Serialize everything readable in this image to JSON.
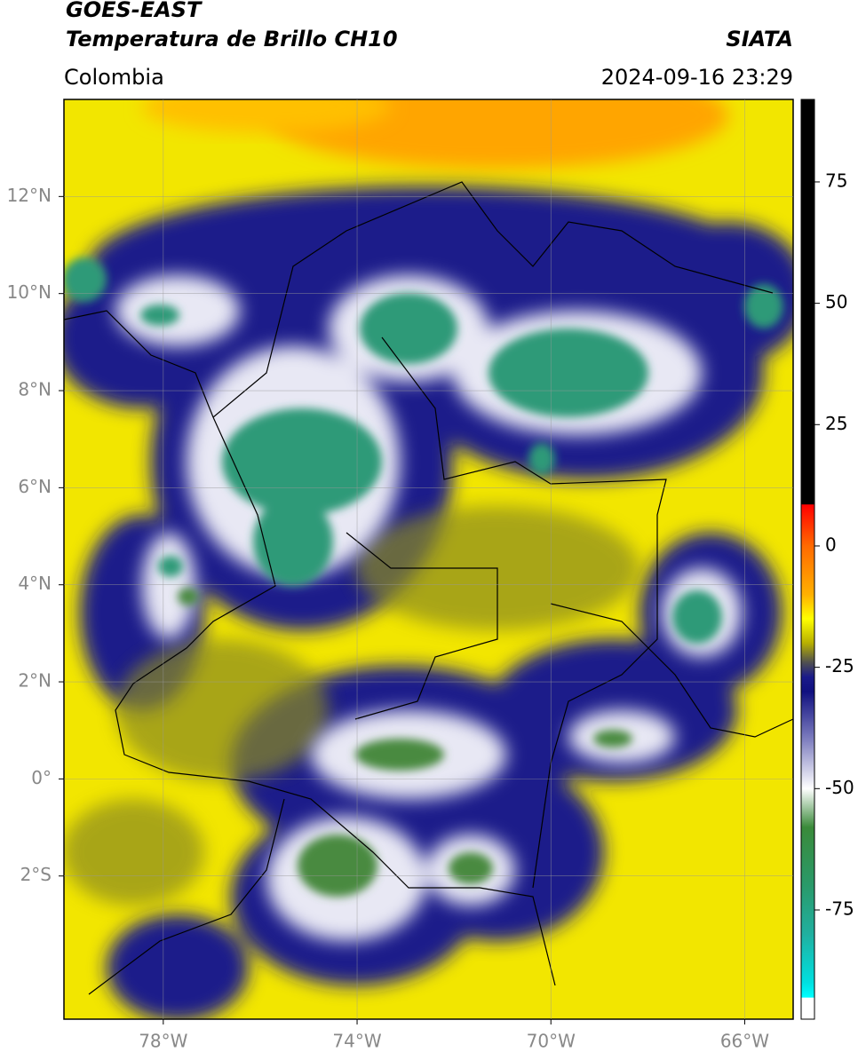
{
  "header": {
    "title": "GOES-EAST",
    "subtitle": "Temperatura de Brillo CH10",
    "region": "Colombia",
    "source": "SIATA",
    "datetime": "2024-09-16 23:29"
  },
  "map": {
    "lonlim": [
      -80.05,
      -65.0
    ],
    "latlim": [
      -4.95,
      14.0
    ],
    "lonticks": [
      {
        "value": -78,
        "label": "78°W"
      },
      {
        "value": -74,
        "label": "74°W"
      },
      {
        "value": -70,
        "label": "70°W"
      },
      {
        "value": -66,
        "label": "66°W"
      }
    ],
    "latticks": [
      {
        "value": 12,
        "label": "12°N"
      },
      {
        "value": 10,
        "label": "10°N"
      },
      {
        "value": 8,
        "label": "8°N"
      },
      {
        "value": 6,
        "label": "6°N"
      },
      {
        "value": 4,
        "label": "4°N"
      },
      {
        "value": 2,
        "label": "2°N"
      },
      {
        "value": 0,
        "label": "0°"
      },
      {
        "value": -2,
        "label": "2°S"
      }
    ],
    "grid": true,
    "colorbar": {
      "lim": [
        -97.5,
        92
      ],
      "ticks": [
        75,
        50,
        25,
        0,
        -25,
        -50,
        -75
      ],
      "stops": [
        {
          "value": 92,
          "color": "#000000"
        },
        {
          "value": 8.6,
          "color": "#000000"
        },
        {
          "value": 8.5,
          "color": "#ff0000"
        },
        {
          "value": 0,
          "color": "#ff6a00"
        },
        {
          "value": -10,
          "color": "#ffb000"
        },
        {
          "value": -15,
          "color": "#ffff00"
        },
        {
          "value": -20,
          "color": "#b8b000"
        },
        {
          "value": -24,
          "color": "#505050"
        },
        {
          "value": -27,
          "color": "#1a1a8a"
        },
        {
          "value": -30,
          "color": "#101080"
        },
        {
          "value": -40,
          "color": "#8080c0"
        },
        {
          "value": -50,
          "color": "#ffffff"
        },
        {
          "value": -58,
          "color": "#3a8a3a"
        },
        {
          "value": -70,
          "color": "#2a9a6a"
        },
        {
          "value": -80,
          "color": "#20b0a0"
        },
        {
          "value": -90,
          "color": "#00e0e0"
        },
        {
          "value": -93,
          "color": "#00ffff"
        },
        {
          "value": -93.1,
          "color": "#ffffff"
        },
        {
          "value": -97.5,
          "color": "#ffffff"
        }
      ]
    }
  }
}
